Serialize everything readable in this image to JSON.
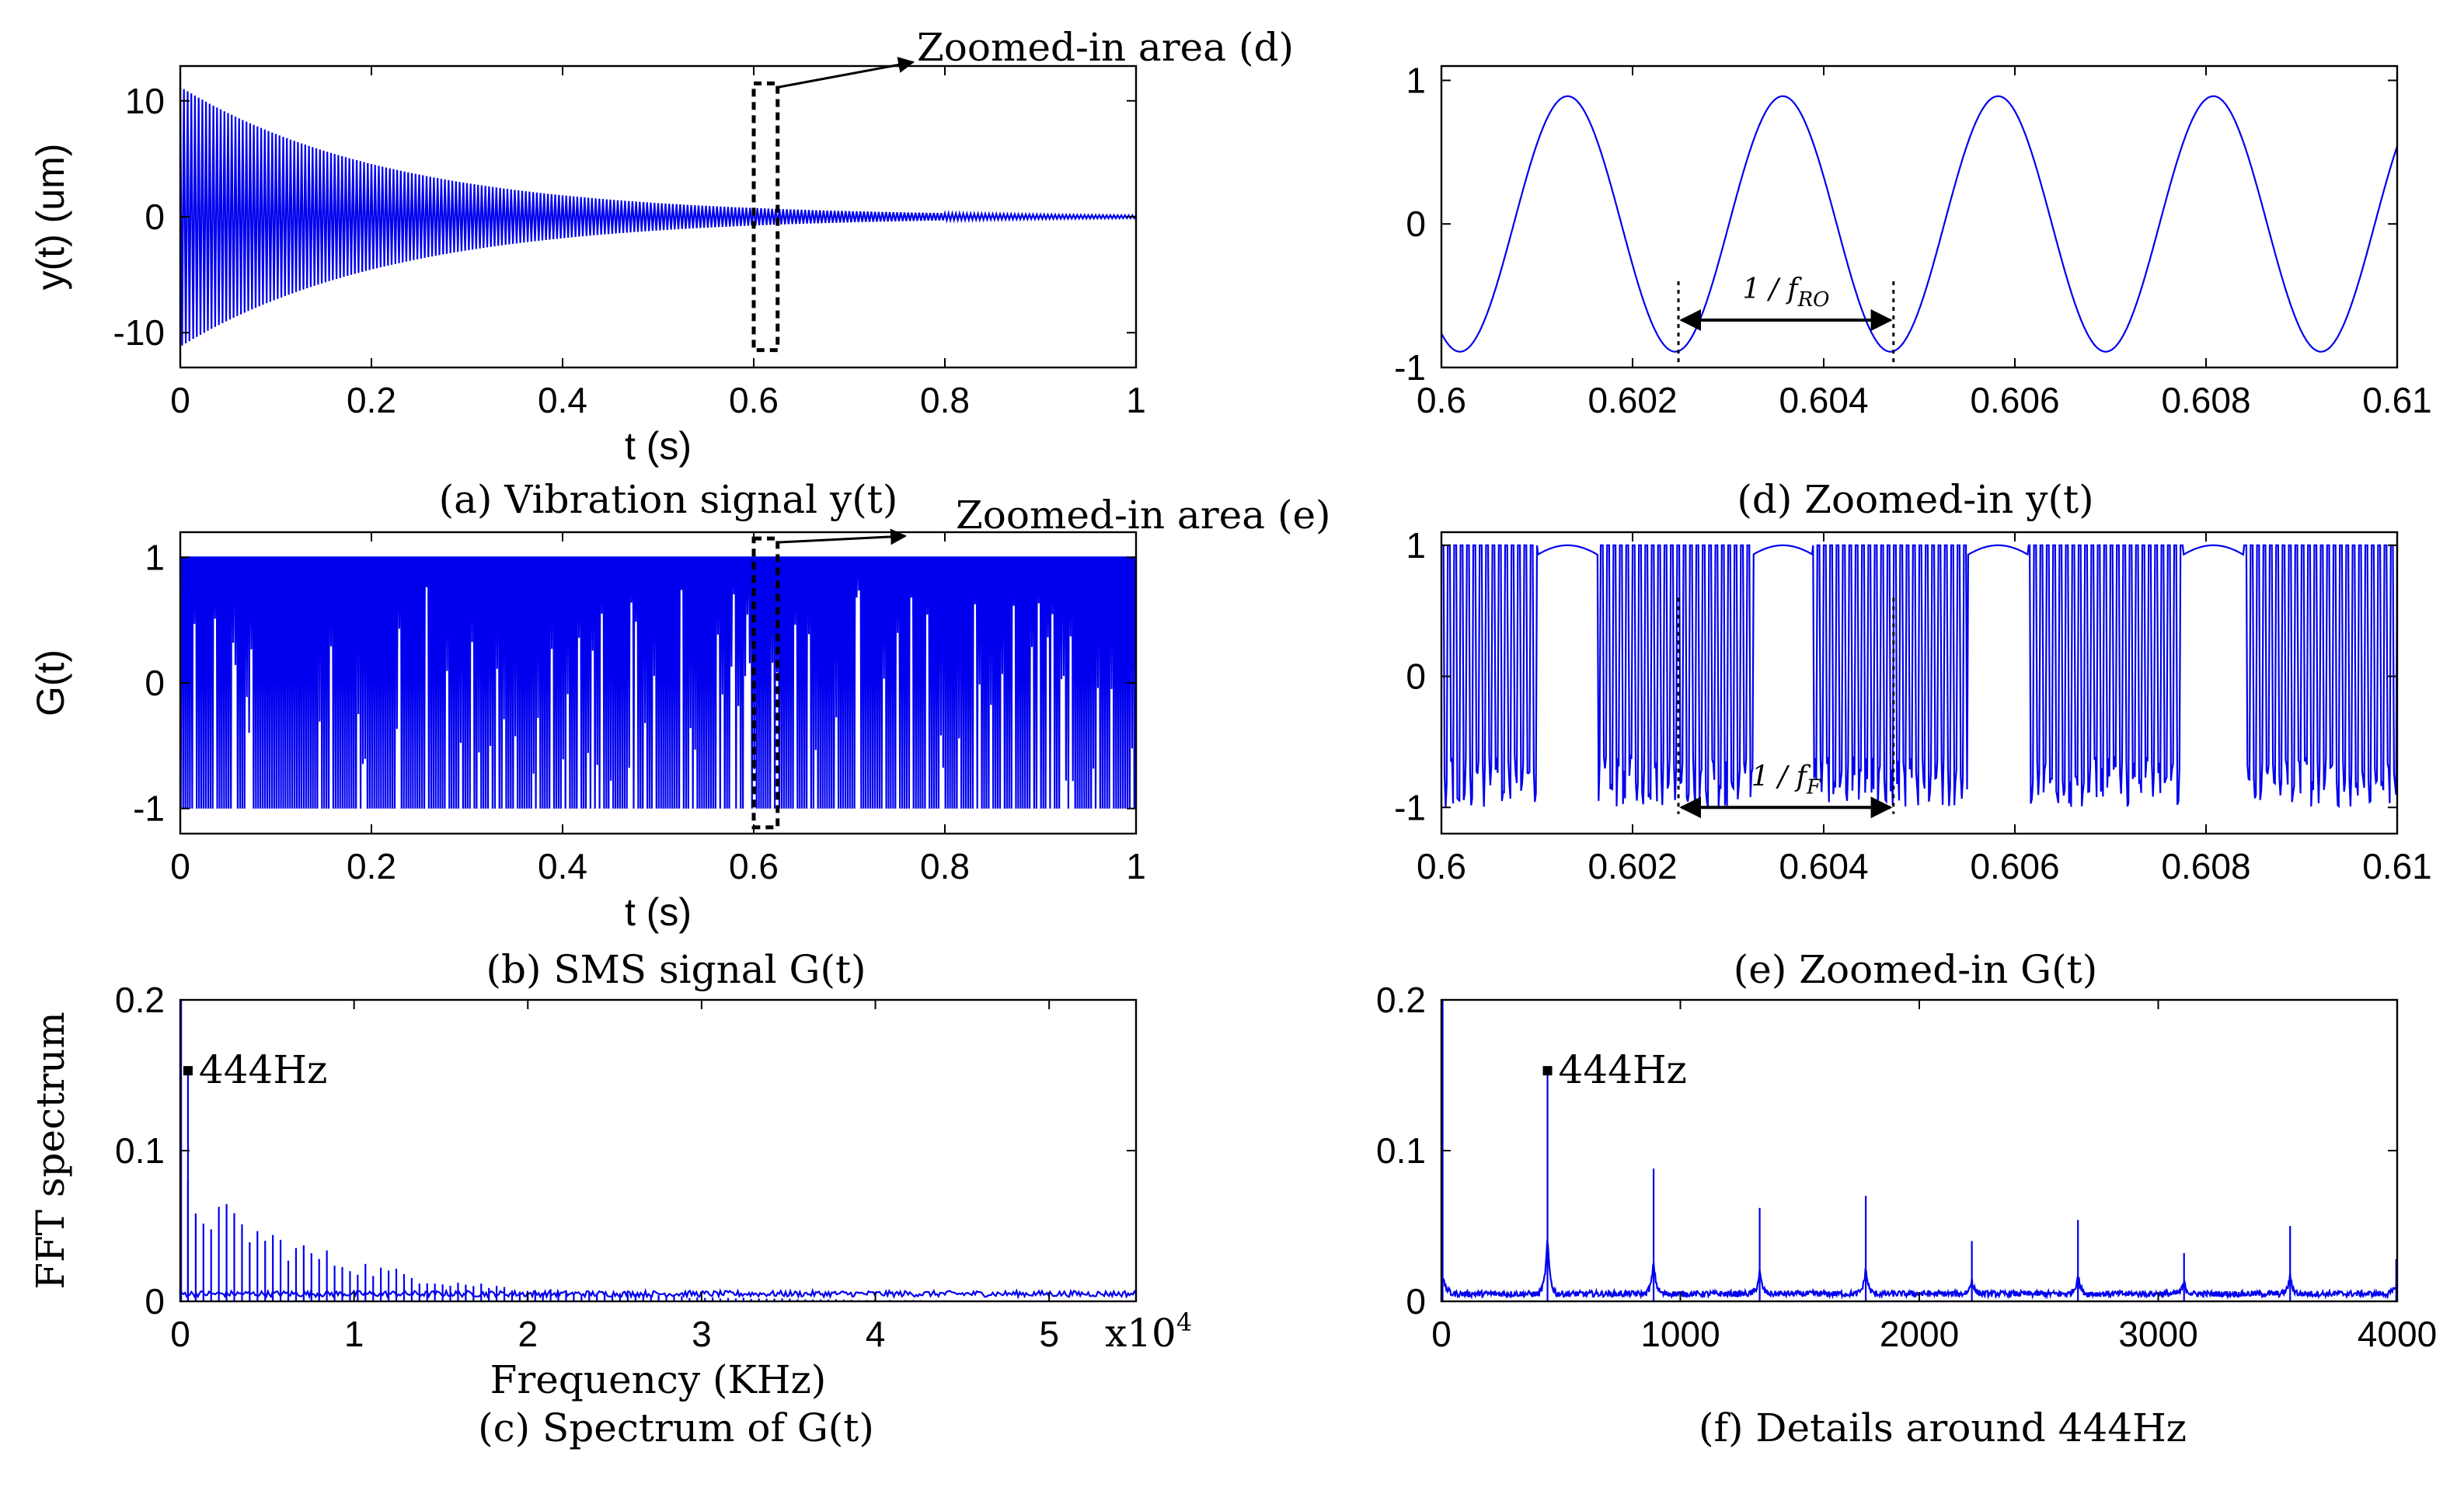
{
  "chart_data": [
    {
      "id": "a",
      "type": "line",
      "caption": "(a) Vibration signal y(t)",
      "xlabel": "t (s)",
      "ylabel": "y(t) (um)",
      "xlim": [
        0,
        1
      ],
      "ylim": [
        -13,
        13
      ],
      "xticks": [
        0,
        0.2,
        0.4,
        0.6,
        0.8,
        1
      ],
      "xtick_labels": [
        "0",
        "0.2",
        "0.4",
        "0.6",
        "0.8",
        "1"
      ],
      "yticks": [
        -10,
        0,
        10
      ],
      "ytick_labels": [
        "-10",
        "0",
        "10"
      ],
      "signal": {
        "kind": "decaying_oscillation",
        "initial_amplitude_um": 11.2,
        "decay_rate_per_s": 4.5
      },
      "annotation": {
        "text": "Zoomed-in area (d)",
        "zoom_box_x": [
          0.6,
          0.625
        ],
        "zoom_box_y": [
          -11.5,
          11.5
        ]
      }
    },
    {
      "id": "b",
      "type": "line",
      "caption": "(b) SMS signal G(t)",
      "xlabel": "t (s)",
      "ylabel": "G(t)",
      "xlim": [
        0,
        1
      ],
      "ylim": [
        -1.2,
        1.2
      ],
      "xticks": [
        0,
        0.2,
        0.4,
        0.6,
        0.8,
        1
      ],
      "xtick_labels": [
        "0",
        "0.2",
        "0.4",
        "0.6",
        "0.8",
        "1"
      ],
      "yticks": [
        -1,
        0,
        1
      ],
      "ytick_labels": [
        "-1",
        "0",
        "1"
      ],
      "signal": {
        "kind": "switching_between_-1_and_1"
      },
      "annotation": {
        "text": "Zoomed-in area (e)",
        "zoom_box_x": [
          0.6,
          0.625
        ],
        "zoom_box_y": [
          -1.15,
          1.15
        ]
      }
    },
    {
      "id": "c",
      "type": "line",
      "caption": "(c) Spectrum of G(t)",
      "xlabel": "Frequency (KHz)",
      "ylabel": "FFT spectrum",
      "xlim": [
        0,
        5.5
      ],
      "ylim": [
        0,
        0.2
      ],
      "xticks": [
        0,
        1,
        2,
        3,
        4,
        5
      ],
      "xtick_labels": [
        "0",
        "1",
        "2",
        "3",
        "4",
        "5"
      ],
      "x_multiplier": "x10",
      "x_multiplier_exp": "4",
      "yticks": [
        0,
        0.1,
        0.2
      ],
      "ytick_labels": [
        "0",
        "0.1",
        "0.2"
      ],
      "peak": {
        "label": "444Hz",
        "x": 0.0444,
        "y": 0.153
      }
    },
    {
      "id": "d",
      "type": "line",
      "caption": "(d) Zoomed-in y(t)",
      "xlabel": "",
      "ylabel": "",
      "xlim": [
        0.6,
        0.61
      ],
      "ylim": [
        -1.0,
        1.1
      ],
      "xticks": [
        0.6,
        0.602,
        0.604,
        0.606,
        0.608,
        0.61
      ],
      "xtick_labels": [
        "0.6",
        "0.602",
        "0.604",
        "0.606",
        "0.608",
        "0.61"
      ],
      "yticks": [
        -1,
        0,
        1
      ],
      "ytick_labels": [
        "-1",
        "0",
        "1"
      ],
      "signal": {
        "kind": "sine",
        "frequency_hz": 444,
        "amplitude": 0.89,
        "peak_at": 0.60132
      },
      "period_marker": {
        "label": "1 / f",
        "subscript": "RO",
        "x_start": 0.60248,
        "x_end": 0.60473,
        "y": -0.67
      }
    },
    {
      "id": "e",
      "type": "line",
      "caption": "(e) Zoomed-in G(t)",
      "xlabel": "",
      "ylabel": "",
      "xlim": [
        0.6,
        0.61
      ],
      "ylim": [
        -1.2,
        1.1
      ],
      "xticks": [
        0.6,
        0.602,
        0.604,
        0.606,
        0.608,
        0.61
      ],
      "xtick_labels": [
        "0.6",
        "0.602",
        "0.604",
        "0.606",
        "0.608",
        "0.61"
      ],
      "yticks": [
        -1,
        0,
        1
      ],
      "ytick_labels": [
        "-1",
        "0",
        "1"
      ],
      "signal": {
        "kind": "switching_between_-1_and_1"
      },
      "period_marker": {
        "label": "1 / f",
        "subscript": "F",
        "x_start": 0.60248,
        "x_end": 0.60473,
        "y": -1.0
      }
    },
    {
      "id": "f",
      "type": "line",
      "caption": "(f) Details around 444Hz",
      "xlabel": "",
      "ylabel": "",
      "xlim": [
        0,
        4000
      ],
      "ylim": [
        0,
        0.2
      ],
      "xticks": [
        0,
        1000,
        2000,
        3000,
        4000
      ],
      "xtick_labels": [
        "0",
        "1000",
        "2000",
        "3000",
        "4000"
      ],
      "yticks": [
        0,
        0.1,
        0.2
      ],
      "ytick_labels": [
        "0",
        "0.1",
        "0.2"
      ],
      "peak": {
        "label": "444Hz",
        "x": 444,
        "y": 0.153
      },
      "harmonics": [
        {
          "x": 444,
          "y": 0.153
        },
        {
          "x": 888,
          "y": 0.088
        },
        {
          "x": 1332,
          "y": 0.062
        },
        {
          "x": 1776,
          "y": 0.07
        },
        {
          "x": 2220,
          "y": 0.04
        },
        {
          "x": 2664,
          "y": 0.054
        },
        {
          "x": 3108,
          "y": 0.032
        },
        {
          "x": 3552,
          "y": 0.05
        },
        {
          "x": 3996,
          "y": 0.028
        }
      ]
    }
  ]
}
